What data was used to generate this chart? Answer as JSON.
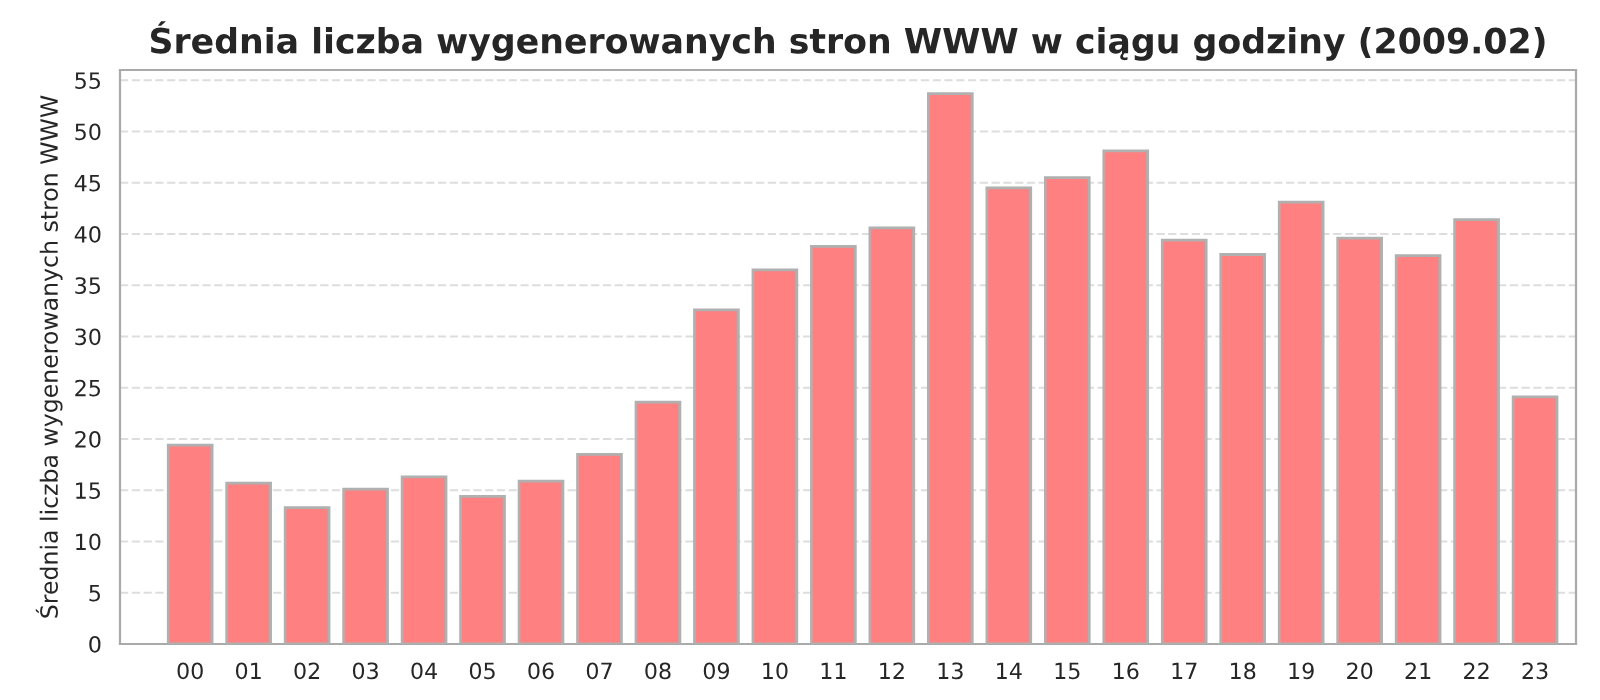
{
  "chart_data": {
    "type": "bar",
    "title": "Średnia liczba wygenerowanych stron WWW w ciągu godziny (2009.02)",
    "ylabel": "Średnia liczba wygenerowanych stron WWW",
    "categories": [
      "00",
      "01",
      "02",
      "03",
      "04",
      "05",
      "06",
      "07",
      "08",
      "09",
      "10",
      "11",
      "12",
      "13",
      "14",
      "15",
      "16",
      "17",
      "18",
      "19",
      "20",
      "21",
      "22",
      "23"
    ],
    "values": [
      19.4,
      15.7,
      13.3,
      15.1,
      16.3,
      14.4,
      15.9,
      18.5,
      23.6,
      32.6,
      36.5,
      38.8,
      40.6,
      53.7,
      44.5,
      45.5,
      48.1,
      39.4,
      38.0,
      43.1,
      39.6,
      37.9,
      41.4,
      24.1
    ],
    "color": "#ff8080",
    "ylim": [
      0,
      56
    ],
    "yticks": [
      0,
      5,
      10,
      15,
      20,
      25,
      30,
      35,
      40,
      45,
      50,
      55
    ],
    "grid": "y"
  }
}
